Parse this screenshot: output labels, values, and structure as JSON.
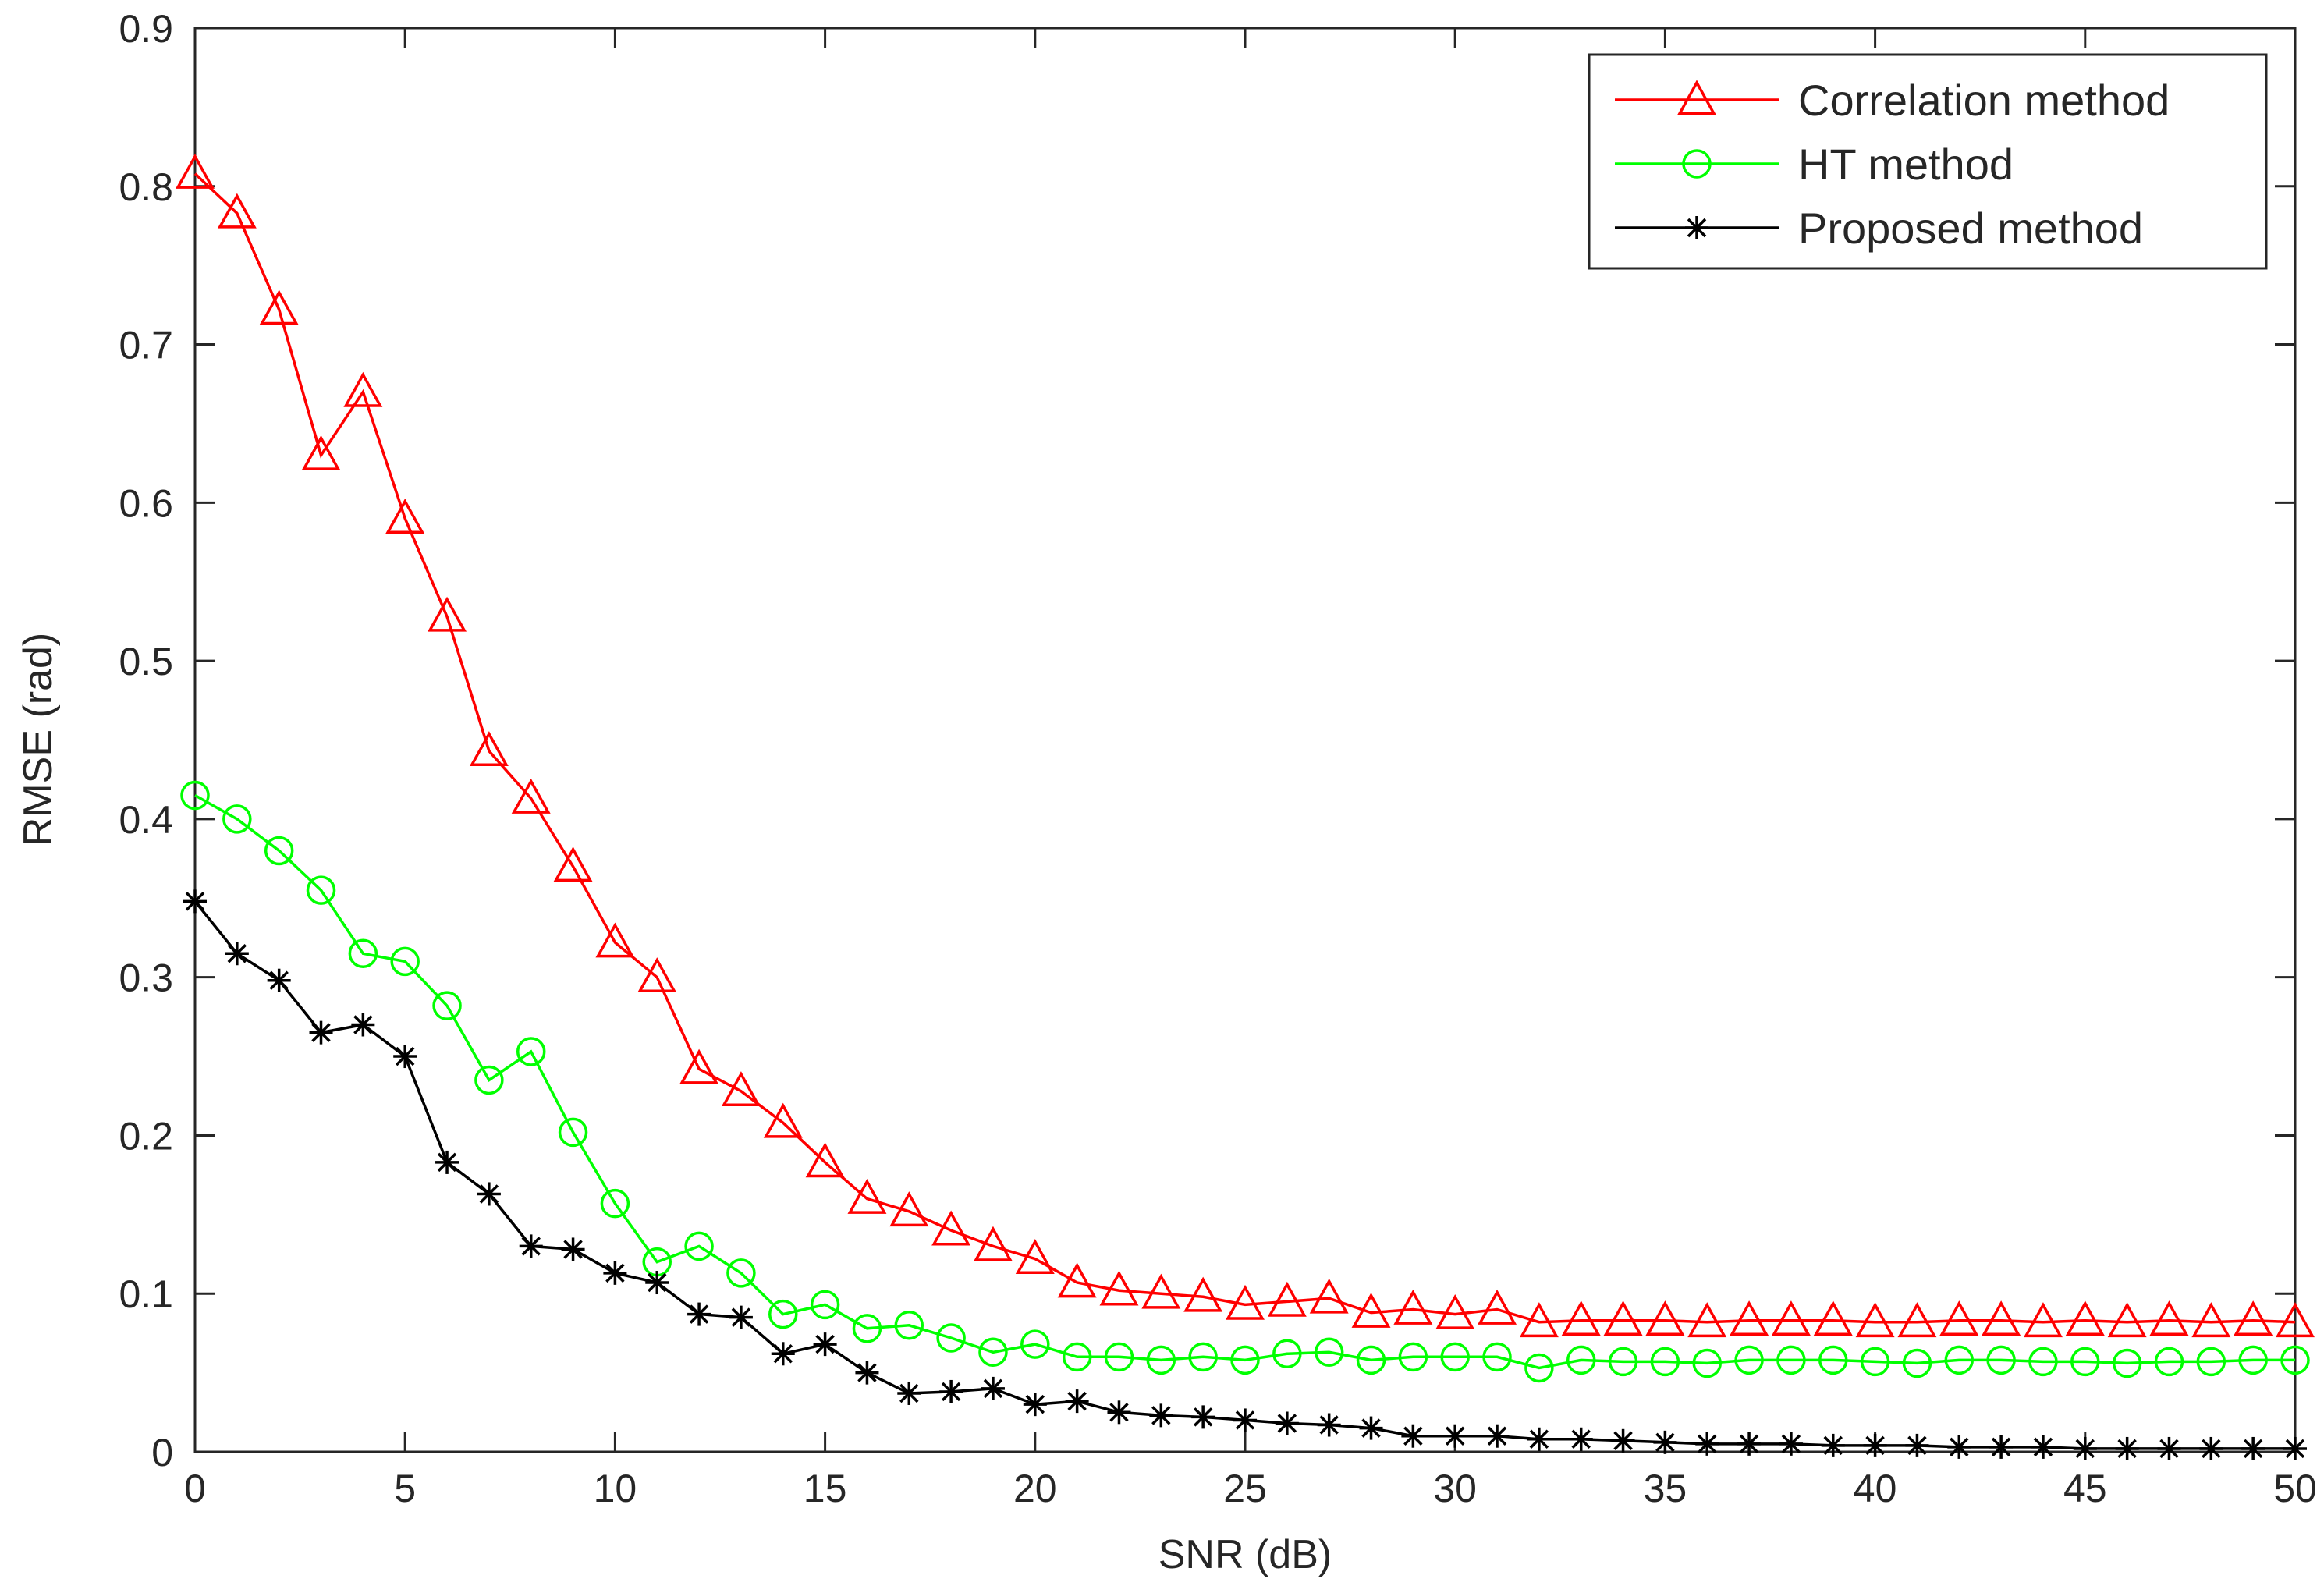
{
  "chart_data": {
    "type": "line",
    "xlabel": "SNR (dB)",
    "ylabel": "RMSE (rad)",
    "xlim": [
      0,
      50
    ],
    "ylim": [
      0,
      0.9
    ],
    "xticks": [
      "0",
      "5",
      "10",
      "15",
      "20",
      "25",
      "30",
      "35",
      "40",
      "45",
      "50"
    ],
    "yticks": [
      "0",
      "0.1",
      "0.2",
      "0.3",
      "0.4",
      "0.5",
      "0.6",
      "0.7",
      "0.8",
      "0.9"
    ],
    "grid": false,
    "legend_position": "top-right",
    "x": [
      0,
      1,
      2,
      3,
      4,
      5,
      6,
      7,
      8,
      9,
      10,
      11,
      12,
      13,
      14,
      15,
      16,
      17,
      18,
      19,
      20,
      21,
      22,
      23,
      24,
      25,
      26,
      27,
      28,
      29,
      30,
      31,
      32,
      33,
      34,
      35,
      36,
      37,
      38,
      39,
      40,
      41,
      42,
      43,
      44,
      45,
      46,
      47,
      48,
      49,
      50
    ],
    "series": [
      {
        "name": "Correlation method",
        "color": "#ff0000",
        "marker": "triangle",
        "values": [
          0.808,
          0.783,
          0.722,
          0.63,
          0.67,
          0.59,
          0.528,
          0.443,
          0.413,
          0.37,
          0.322,
          0.3,
          0.242,
          0.228,
          0.208,
          0.183,
          0.16,
          0.152,
          0.14,
          0.13,
          0.122,
          0.107,
          0.102,
          0.1,
          0.098,
          0.093,
          0.095,
          0.097,
          0.088,
          0.09,
          0.087,
          0.09,
          0.082,
          0.083,
          0.083,
          0.083,
          0.082,
          0.083,
          0.083,
          0.083,
          0.082,
          0.082,
          0.083,
          0.083,
          0.082,
          0.083,
          0.082,
          0.083,
          0.082,
          0.083,
          0.082
        ]
      },
      {
        "name": "HT method",
        "color": "#00ff00",
        "marker": "circle",
        "values": [
          0.415,
          0.4,
          0.38,
          0.355,
          0.315,
          0.31,
          0.282,
          0.235,
          0.253,
          0.202,
          0.157,
          0.12,
          0.13,
          0.113,
          0.087,
          0.093,
          0.078,
          0.08,
          0.072,
          0.063,
          0.068,
          0.06,
          0.06,
          0.058,
          0.06,
          0.058,
          0.062,
          0.063,
          0.058,
          0.06,
          0.06,
          0.06,
          0.053,
          0.058,
          0.057,
          0.057,
          0.056,
          0.058,
          0.058,
          0.058,
          0.057,
          0.056,
          0.058,
          0.058,
          0.057,
          0.057,
          0.056,
          0.057,
          0.057,
          0.058,
          0.058
        ]
      },
      {
        "name": "Proposed method",
        "color": "#000000",
        "marker": "star",
        "values": [
          0.348,
          0.315,
          0.298,
          0.265,
          0.27,
          0.25,
          0.183,
          0.163,
          0.13,
          0.128,
          0.113,
          0.107,
          0.087,
          0.085,
          0.062,
          0.068,
          0.05,
          0.037,
          0.038,
          0.04,
          0.03,
          0.032,
          0.025,
          0.023,
          0.022,
          0.02,
          0.018,
          0.017,
          0.015,
          0.01,
          0.01,
          0.01,
          0.008,
          0.008,
          0.007,
          0.006,
          0.005,
          0.005,
          0.005,
          0.004,
          0.004,
          0.004,
          0.003,
          0.003,
          0.003,
          0.002,
          0.002,
          0.002,
          0.002,
          0.002,
          0.002
        ]
      }
    ]
  }
}
